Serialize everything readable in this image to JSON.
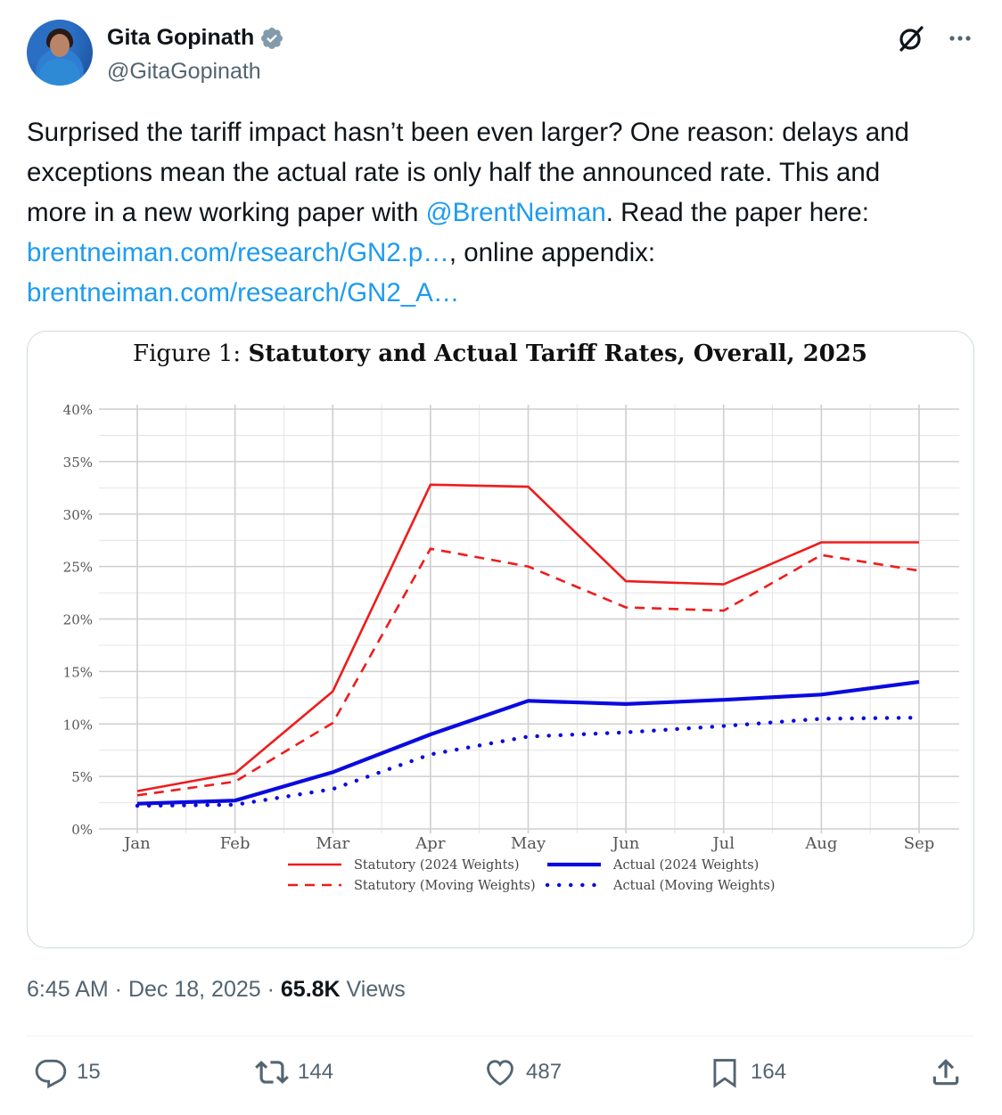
{
  "author": {
    "name": "Gita Gopinath",
    "handle": "@GitaGopinath"
  },
  "icons": {
    "verified": "verified-badge-icon",
    "grok": "grok-icon",
    "more": "more-icon",
    "reply": "reply-icon",
    "retweet": "retweet-icon",
    "like": "like-icon",
    "bookmark": "bookmark-icon",
    "share": "share-icon"
  },
  "tweet": {
    "line1": "Surprised the tariff impact hasn’t been even larger? One reason: delays and",
    "line2": "exceptions mean the actual rate is only half the announced rate.  This and",
    "line3_before": "more in a new working paper with ",
    "mention": "@BrentNeiman",
    "line3_after": ". Read the paper here:",
    "link1": "brentneiman.com/research/GN2.p…",
    "link1_after": ", online appendix:",
    "link2": "brentneiman.com/research/GN2_A…"
  },
  "meta": {
    "time": "6:45 AM",
    "sep1": " · ",
    "date": "Dec 18, 2025",
    "sep2": " · ",
    "views_count": "65.8K",
    "views_label": " Views"
  },
  "actions": {
    "replies": "15",
    "retweets": "144",
    "likes": "487",
    "bookmarks": "164"
  },
  "colors": {
    "link": "#1d9bf0",
    "statutory": "#ee1c1c",
    "actual": "#0a0adf",
    "muted": "#536471"
  },
  "chart_data": {
    "type": "line",
    "title_prefix": "Figure 1: ",
    "title": "Statutory and Actual Tariff Rates, Overall, 2025",
    "x": [
      "Jan",
      "Feb",
      "Mar",
      "Apr",
      "May",
      "Jun",
      "Jul",
      "Aug",
      "Sep"
    ],
    "ylim": [
      0,
      40
    ],
    "yticks": [
      0,
      5,
      10,
      15,
      20,
      25,
      30,
      35,
      40
    ],
    "ytick_labels": [
      "0%",
      "5%",
      "10%",
      "15%",
      "20%",
      "25%",
      "30%",
      "35%",
      "40%"
    ],
    "grid": true,
    "legend_position": "bottom",
    "series": [
      {
        "name": "Statutory (2024 Weights)",
        "color": "#ee1c1c",
        "style": "solid",
        "values": [
          3.6,
          5.3,
          13.1,
          32.8,
          32.6,
          23.6,
          23.3,
          27.3,
          27.3
        ]
      },
      {
        "name": "Statutory (Moving Weights)",
        "color": "#ee1c1c",
        "style": "dashed",
        "values": [
          3.2,
          4.5,
          10.1,
          26.7,
          25.0,
          21.1,
          20.8,
          26.1,
          24.6
        ]
      },
      {
        "name": "Actual (2024 Weights)",
        "color": "#0a0adf",
        "style": "solid-thick",
        "values": [
          2.4,
          2.7,
          5.4,
          9.0,
          12.2,
          11.9,
          12.3,
          12.8,
          14.0
        ]
      },
      {
        "name": "Actual (Moving Weights)",
        "color": "#0a0adf",
        "style": "dotted",
        "values": [
          2.2,
          2.3,
          3.8,
          7.1,
          8.8,
          9.2,
          9.8,
          10.5,
          10.6
        ]
      }
    ]
  }
}
